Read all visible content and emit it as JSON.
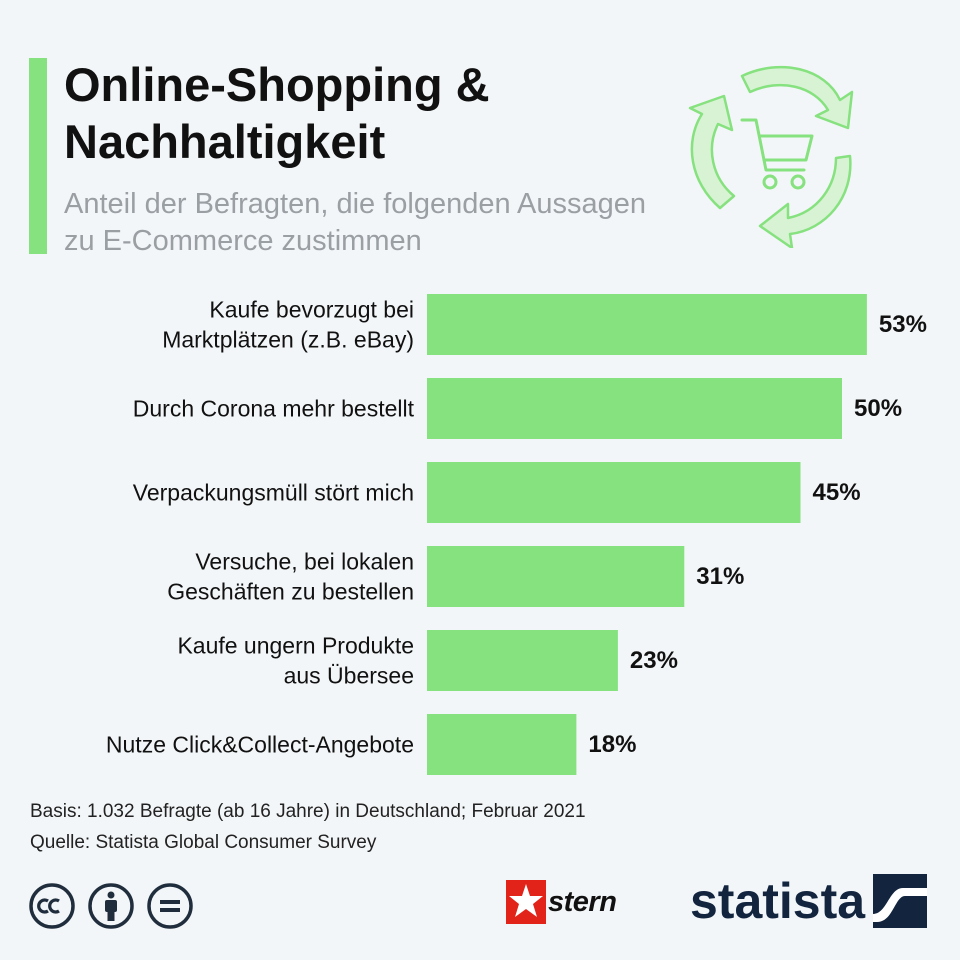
{
  "header": {
    "title": "Online-Shopping & Nachhaltigkeit",
    "subtitle": "Anteil der Befragten, die folgenden Aussagen zu E-Commerce zustimmen"
  },
  "icons": {
    "header_illustration": "recycle-shopping-cart-icon",
    "license": [
      "cc-icon",
      "attribution-icon",
      "no-derivatives-icon"
    ],
    "statista_mark": "statista-mark-icon",
    "stern_mark": "stern-star-icon"
  },
  "colors": {
    "bar": "#86e17f",
    "accent": "#86e17f",
    "statista_navy": "#12243e",
    "stern_red": "#e2231a"
  },
  "chart_data": {
    "type": "bar",
    "orientation": "horizontal",
    "title": "Online-Shopping & Nachhaltigkeit",
    "categories": [
      [
        "Kaufe bevorzugt bei",
        "Marktplätzen (z.B. eBay)"
      ],
      [
        "Durch Corona mehr bestellt"
      ],
      [
        "Verpackungsmüll stört mich"
      ],
      [
        "Versuche, bei lokalen",
        "Geschäften zu bestellen"
      ],
      [
        "Kaufe ungern Produkte",
        "aus Übersee"
      ],
      [
        "Nutze Click&Collect-Angebote"
      ]
    ],
    "values": [
      53,
      50,
      45,
      31,
      23,
      18
    ],
    "value_labels": [
      "53%",
      "50%",
      "45%",
      "31%",
      "23%",
      "18%"
    ],
    "unit": "%",
    "xlim": [
      0,
      100
    ],
    "grid": false,
    "legend": "none"
  },
  "footer": {
    "basis": "Basis: 1.032 Befragte (ab 16 Jahre) in Deutschland; Februar 2021",
    "source": "Quelle: Statista Global Consumer Survey",
    "stern_label": "stern",
    "statista_label": "statista"
  }
}
